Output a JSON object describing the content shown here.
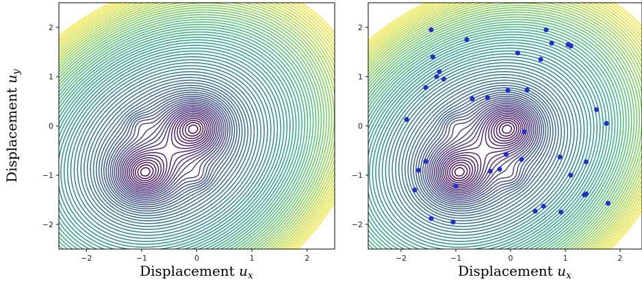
{
  "chart_data": [
    {
      "type": "contour",
      "xlabel": "Displacement",
      "xlabel_math": "u",
      "xlabel_sub": "x",
      "ylabel": "Displacement",
      "ylabel_math": "u",
      "ylabel_sub": "y",
      "xlim": [
        -2.5,
        2.5
      ],
      "ylim": [
        -2.5,
        2.5
      ],
      "xticks": [
        -2,
        -1,
        0,
        1,
        2
      ],
      "yticks": [
        -2,
        -1,
        0,
        1,
        2
      ],
      "xtick_labels": [
        "−2",
        "−1",
        "0",
        "1",
        "2"
      ],
      "ytick_labels": [
        "−2",
        "−1",
        "0",
        "1",
        "2"
      ],
      "grid": false,
      "colormap": "viridis",
      "minima": [
        [
          0,
          0
        ],
        [
          -1,
          -1
        ]
      ],
      "side_minima": [
        [
          -1.05,
          0.05
        ],
        [
          0.05,
          -1.05
        ]
      ]
    },
    {
      "type": "contour+scatter",
      "xlabel": "Displacement",
      "xlabel_math": "u",
      "xlabel_sub": "x",
      "xlim": [
        -2.5,
        2.5
      ],
      "ylim": [
        -2.5,
        2.5
      ],
      "xticks": [
        -2,
        -1,
        0,
        1,
        2
      ],
      "yticks": [
        -2,
        -1,
        0,
        1,
        2
      ],
      "xtick_labels": [
        "−2",
        "−1",
        "0",
        "1",
        "2"
      ],
      "ytick_labels": [
        "−2",
        "−1",
        "0",
        "1",
        "2"
      ],
      "grid": false,
      "colormap": "viridis",
      "marker_color": "#1f2fd0",
      "points": [
        [
          -1.45,
          1.95
        ],
        [
          -0.8,
          1.75
        ],
        [
          0.65,
          1.95
        ],
        [
          1.05,
          1.65
        ],
        [
          1.1,
          1.62
        ],
        [
          0.75,
          1.68
        ],
        [
          -1.42,
          1.4
        ],
        [
          0.13,
          1.48
        ],
        [
          0.55,
          1.35
        ],
        [
          -1.3,
          1.1
        ],
        [
          -1.35,
          1.0
        ],
        [
          -1.22,
          0.95
        ],
        [
          -1.55,
          0.78
        ],
        [
          -0.05,
          0.72
        ],
        [
          0.3,
          0.73
        ],
        [
          -0.7,
          0.55
        ],
        [
          -0.42,
          0.57
        ],
        [
          1.57,
          0.33
        ],
        [
          1.75,
          0.05
        ],
        [
          -1.9,
          0.13
        ],
        [
          0.25,
          -0.12
        ],
        [
          -0.08,
          -0.58
        ],
        [
          -1.55,
          -0.72
        ],
        [
          0.9,
          -0.63
        ],
        [
          0.2,
          -0.68
        ],
        [
          -1.68,
          -0.9
        ],
        [
          -0.2,
          -0.88
        ],
        [
          -0.37,
          -0.92
        ],
        [
          1.38,
          -0.73
        ],
        [
          1.1,
          -1.0
        ],
        [
          -1.0,
          -1.22
        ],
        [
          -1.75,
          -1.3
        ],
        [
          1.38,
          -1.38
        ],
        [
          1.35,
          -1.4
        ],
        [
          1.78,
          -1.57
        ],
        [
          0.6,
          -1.63
        ],
        [
          0.45,
          -1.73
        ],
        [
          0.92,
          -1.75
        ],
        [
          -1.45,
          -1.88
        ],
        [
          -1.05,
          -1.95
        ]
      ]
    }
  ]
}
